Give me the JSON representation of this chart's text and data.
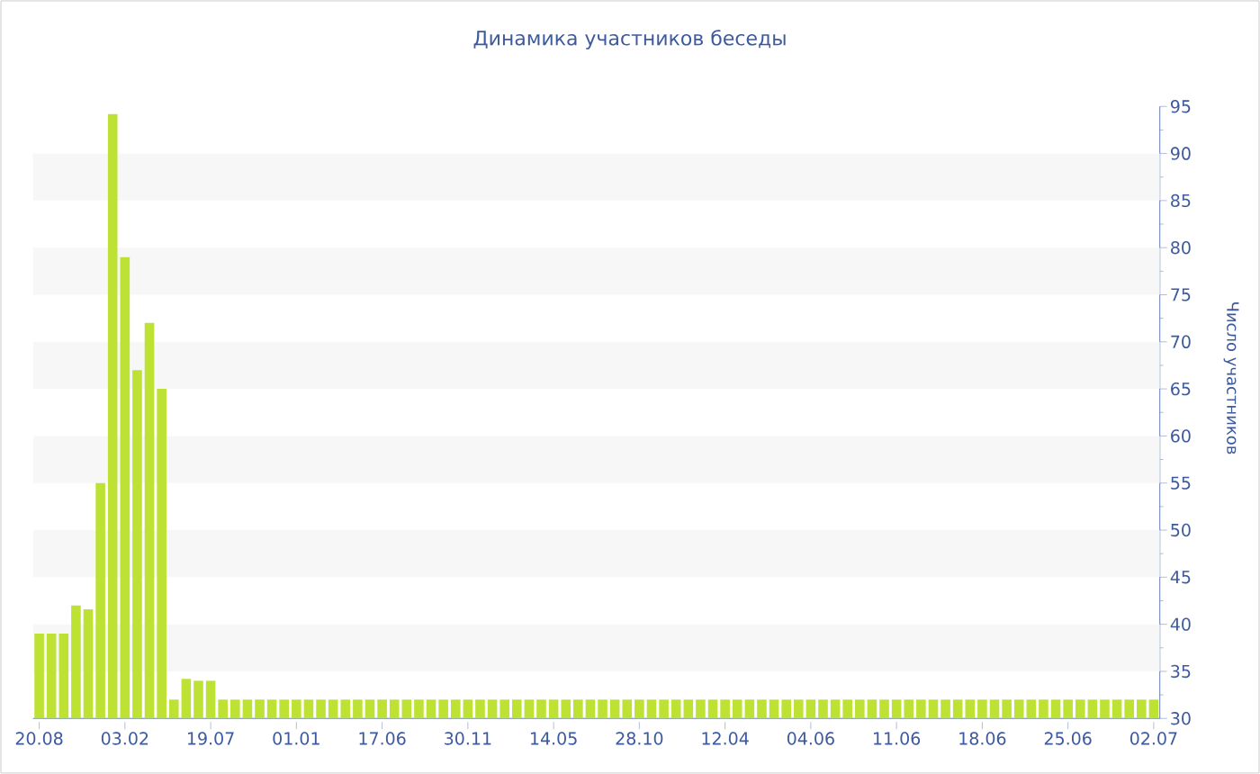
{
  "chart_data": {
    "type": "bar",
    "title": "Динамика участников беседы",
    "ylabel": "Число участников",
    "color": "#bde234",
    "categories": [
      "20.08",
      null,
      null,
      null,
      null,
      null,
      null,
      "03.02",
      null,
      null,
      null,
      null,
      null,
      null,
      "19.07",
      null,
      null,
      null,
      null,
      null,
      null,
      "01.01",
      null,
      null,
      null,
      null,
      null,
      null,
      "17.06",
      null,
      null,
      null,
      null,
      null,
      null,
      "30.11",
      null,
      null,
      null,
      null,
      null,
      null,
      "14.05",
      null,
      null,
      null,
      null,
      null,
      null,
      "28.10",
      null,
      null,
      null,
      null,
      null,
      null,
      "12.04",
      null,
      null,
      null,
      null,
      null,
      null,
      "04.06",
      null,
      null,
      null,
      null,
      null,
      null,
      "11.06",
      null,
      null,
      null,
      null,
      null,
      null,
      "18.06",
      null,
      null,
      null,
      null,
      null,
      null,
      "25.06",
      null,
      null,
      null,
      null,
      null,
      null,
      "02.07"
    ],
    "values": [
      39,
      39,
      39,
      42,
      41.6,
      55,
      94.2,
      79,
      67,
      72,
      65,
      32,
      34.2,
      34,
      34,
      32,
      32,
      32,
      32,
      32,
      32,
      32,
      32,
      32,
      32,
      32,
      32,
      32,
      32,
      32,
      32,
      32,
      32,
      32,
      32,
      32,
      32,
      32,
      32,
      32,
      32,
      32,
      32,
      32,
      32,
      32,
      32,
      32,
      32,
      32,
      32,
      32,
      32,
      32,
      32,
      32,
      32,
      32,
      32,
      32,
      32,
      32,
      32,
      32,
      32,
      32,
      32,
      32,
      32,
      32,
      32,
      32,
      32,
      32,
      32,
      32,
      32,
      32,
      32,
      32,
      32,
      32,
      32,
      32,
      32,
      32,
      32,
      32,
      32,
      32,
      32,
      32
    ],
    "ylim": [
      30,
      95
    ],
    "yticks": [
      30,
      35,
      40,
      45,
      50,
      55,
      60,
      65,
      70,
      75,
      80,
      85,
      90,
      95
    ],
    "bands": [
      {
        "axis": "y",
        "from": 35,
        "to": 40,
        "color": "#f7f7f7"
      },
      {
        "axis": "y",
        "from": 45,
        "to": 50,
        "color": "#f7f7f7"
      },
      {
        "axis": "y",
        "from": 55,
        "to": 60,
        "color": "#f7f7f7"
      },
      {
        "axis": "y",
        "from": 65,
        "to": 70,
        "color": "#f7f7f7"
      },
      {
        "axis": "y",
        "from": 75,
        "to": 80,
        "color": "#f7f7f7"
      },
      {
        "axis": "y",
        "from": 85,
        "to": 90,
        "color": "#f7f7f7"
      }
    ]
  }
}
